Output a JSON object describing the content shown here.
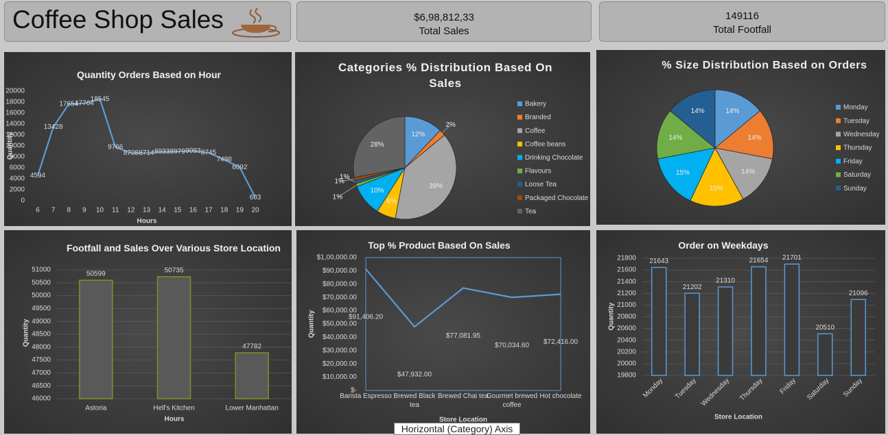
{
  "header": {
    "title": "Coffee Shop Sales",
    "kpis": [
      {
        "value": "$6,98,812,33",
        "label": "Total Sales"
      },
      {
        "value": "149116",
        "label": "Total Footfall"
      }
    ]
  },
  "chart_data": [
    {
      "type": "line",
      "title": "Quantity Orders Based on Hour",
      "x_label": "Hours",
      "y_label": "Quantity",
      "categories": [
        "6",
        "7",
        "8",
        "9",
        "10",
        "11",
        "12",
        "13",
        "14",
        "15",
        "16",
        "17",
        "18",
        "19",
        "20"
      ],
      "values": [
        4594,
        13428,
        17654,
        17764,
        18545,
        9766,
        8708,
        8714,
        8933,
        8979,
        9093,
        8745,
        7498,
        6092,
        603
      ],
      "color": "#5b9bd5",
      "ylim": [
        0,
        20000
      ],
      "yticks": [
        0,
        2000,
        4000,
        6000,
        8000,
        10000,
        12000,
        14000,
        16000,
        18000,
        20000
      ]
    },
    {
      "type": "pie",
      "title": "Categories % Distribution Based On Sales",
      "categories": [
        "Bakery",
        "Branded",
        "Coffee",
        "Coffee beans",
        "Drinking Chocolate",
        "Flavours",
        "Loose Tea",
        "Packaged Chocolate",
        "Tea"
      ],
      "values": [
        12,
        2,
        39,
        6,
        10,
        1,
        1,
        1,
        28
      ],
      "value_labels": [
        "12%",
        "2%",
        "39%",
        "6%",
        "10%",
        "1%",
        "1%",
        "1%",
        "28%"
      ],
      "colors": [
        "#5b9bd5",
        "#ed7d31",
        "#a5a5a5",
        "#ffc000",
        "#00b0f0",
        "#70ad47",
        "#255e91",
        "#9e480e",
        "#636363"
      ]
    },
    {
      "type": "pie",
      "title": "% Size Distribution Based on Orders",
      "categories": [
        "Monday",
        "Tuesday",
        "Wednesday",
        "Thursday",
        "Friday",
        "Saturday",
        "Sunday"
      ],
      "values": [
        14,
        14,
        14,
        15,
        15,
        14,
        14
      ],
      "value_labels": [
        "14%",
        "14%",
        "14%",
        "15%",
        "15%",
        "14%",
        "14%"
      ],
      "colors": [
        "#5b9bd5",
        "#ed7d31",
        "#a5a5a5",
        "#ffc000",
        "#00b0f0",
        "#70ad47",
        "#255e91"
      ]
    },
    {
      "type": "bar",
      "title": "Footfall and Sales Over Various Store Location",
      "x_label": "Hours",
      "y_label": "Quantity",
      "categories": [
        "Astoria",
        "Hell's Kitchen",
        "Lower Manhattan"
      ],
      "values": [
        50599,
        50735,
        47782
      ],
      "color": "#595959",
      "edge_color": "#8a8a2a",
      "ylim": [
        46000,
        51000
      ],
      "yticks": [
        46000,
        46500,
        47000,
        47500,
        48000,
        48500,
        49000,
        49500,
        50000,
        50500,
        51000
      ],
      "grid": true
    },
    {
      "type": "line",
      "title": "Top % Product Based On Sales",
      "x_label": "Store Location",
      "y_label": "Quantity",
      "categories": [
        "Barista Espresso",
        "Brewed Black tea",
        "Brewed Chai tea",
        "Gourmet brewed coffee",
        "Hot chocolate"
      ],
      "values": [
        91406.2,
        47932,
        77081.95,
        70034.6,
        72416
      ],
      "value_labels": [
        "$91,406.20",
        "$47,932.00",
        "$77,081.95",
        "$70,034.60",
        "$72,416.00"
      ],
      "color": "#5b9bd5",
      "ylim": [
        0,
        100000
      ],
      "yticks": [
        {
          "value": 0,
          "label": "$-"
        },
        {
          "value": 10000,
          "label": "$10,000.00"
        },
        {
          "value": 20000,
          "label": "$20,000.00"
        },
        {
          "value": 30000,
          "label": "$30,000.00"
        },
        {
          "value": 40000,
          "label": "$40,000.00"
        },
        {
          "value": 50000,
          "label": "$50,000.00"
        },
        {
          "value": 60000,
          "label": "$60,000.00"
        },
        {
          "value": 70000,
          "label": "$70,000.00"
        },
        {
          "value": 80000,
          "label": "$80,000.00"
        },
        {
          "value": 90000,
          "label": "$90,000.00"
        },
        {
          "value": 100000,
          "label": "$1,00,000.00"
        }
      ]
    },
    {
      "type": "bar",
      "title": "Order on Weekdays",
      "x_label": "Store Location",
      "y_label": "Quantity",
      "categories": [
        "Monday",
        "Tuesday",
        "Wednesday",
        "Thursday",
        "Friday",
        "Saturday",
        "Sunday"
      ],
      "values": [
        21643,
        21202,
        21310,
        21654,
        21701,
        20510,
        21096
      ],
      "color": "#3b3b3b",
      "edge_color": "#5b9bd5",
      "ylim": [
        19800,
        21800
      ],
      "yticks": [
        19800,
        20000,
        20200,
        20400,
        20600,
        20800,
        21000,
        21200,
        21400,
        21600,
        21800
      ],
      "grid": true
    }
  ],
  "tooltip": "Horizontal (Category) Axis"
}
